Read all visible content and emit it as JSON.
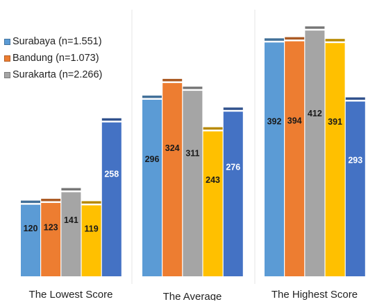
{
  "chart_data": {
    "type": "bar",
    "categories": [
      "The Lowest Score",
      "The Average",
      "The Highest Score"
    ],
    "series": [
      {
        "name": "Surabaya (n=1.551)",
        "color": "#5B9BD5",
        "values": [
          120,
          296,
          392
        ]
      },
      {
        "name": "Bandung (n=1.073)",
        "color": "#ED7D31",
        "values": [
          123,
          324,
          394
        ]
      },
      {
        "name": "Surakarta (n=2.266)",
        "color": "#A5A5A5",
        "values": [
          141,
          311,
          412
        ]
      },
      {
        "name": "",
        "color": "#FFC000",
        "values": [
          119,
          243,
          391
        ]
      },
      {
        "name": "",
        "color": "#4472C4",
        "values": [
          258,
          276,
          293
        ]
      }
    ],
    "ylim": [
      0,
      440
    ],
    "legend_position": "top-left",
    "grid": false
  }
}
